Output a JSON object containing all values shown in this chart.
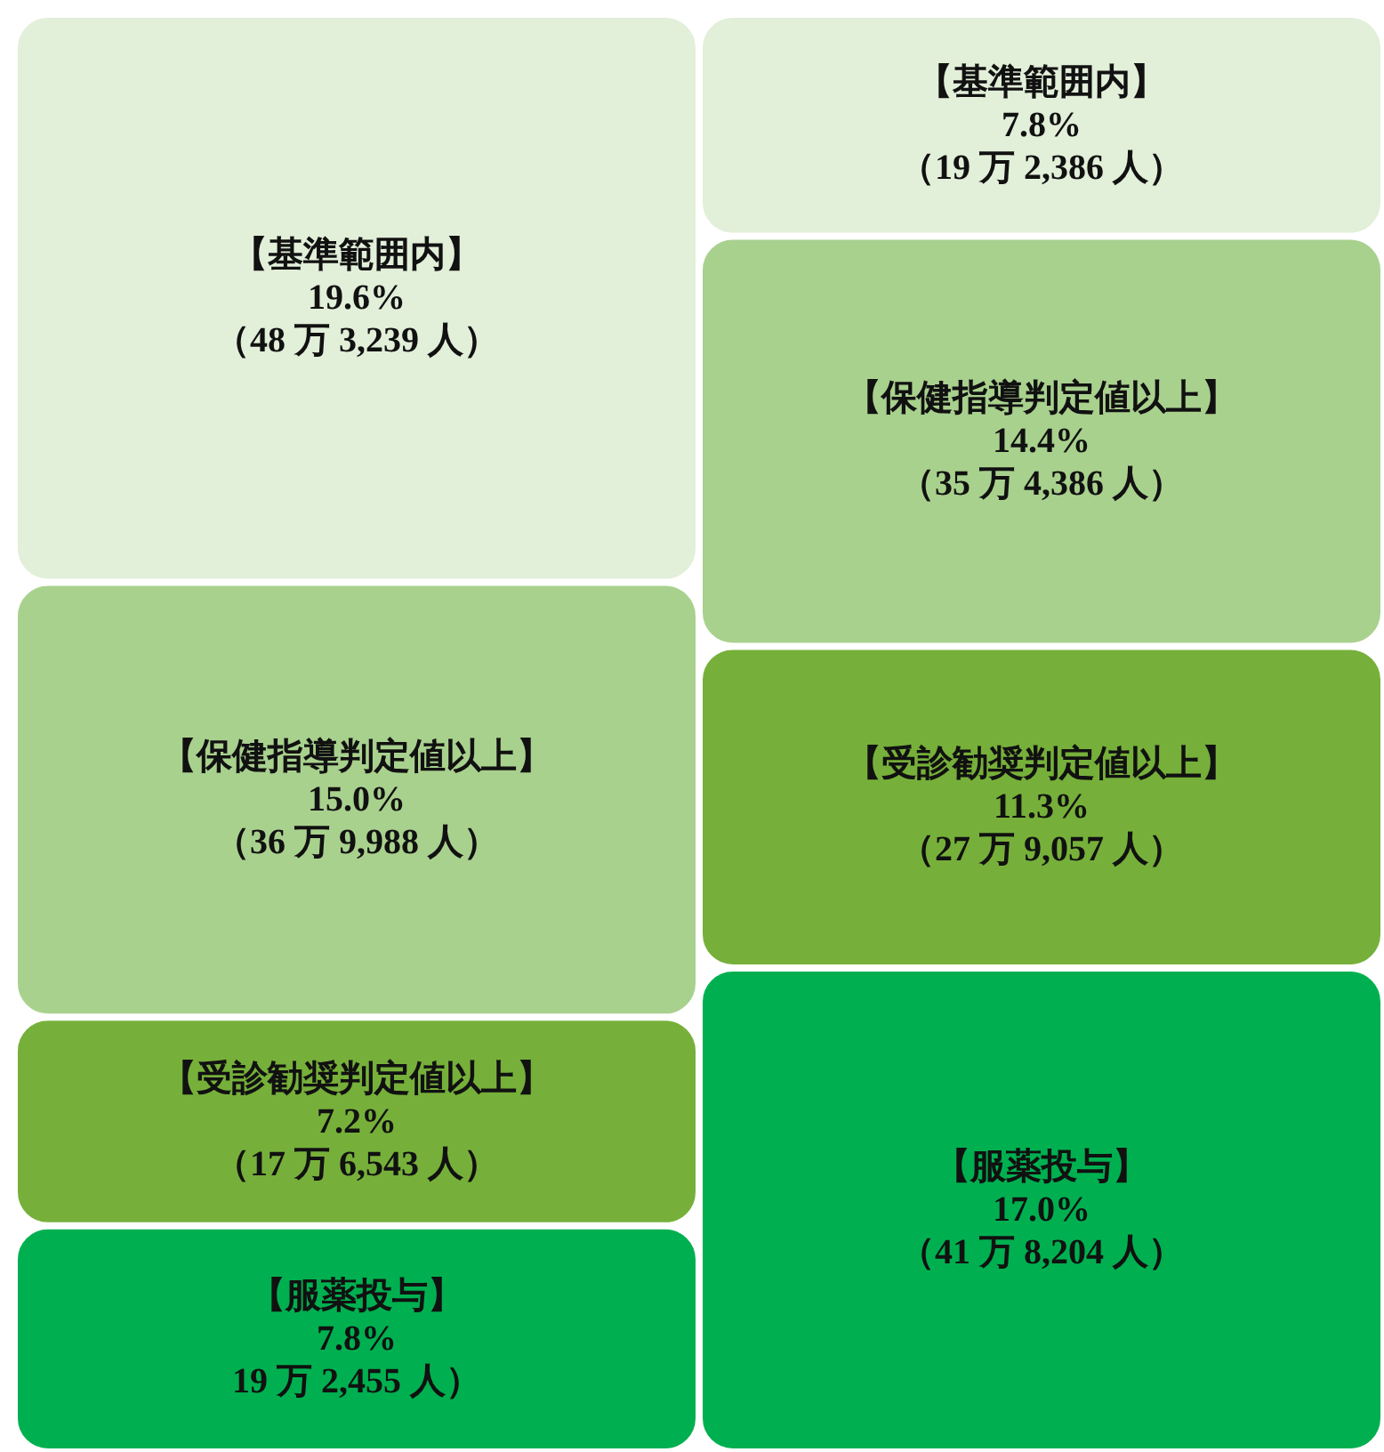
{
  "chart_data": {
    "type": "other",
    "categories": [
      "【基準範囲内】",
      "【保健指導判定値以上】",
      "【受診勧奨判定値以上】",
      "【服薬投与】",
      "【基準範囲内】",
      "【保健指導判定値以上】",
      "【受診勧奨判定値以上】",
      "【服薬投与】"
    ],
    "values": [
      19.6,
      15.0,
      7.2,
      7.8,
      7.8,
      14.4,
      11.3,
      17.0
    ],
    "value_labels": [
      "19.6%",
      "15.0%",
      "7.2%",
      "7.8%",
      "7.8%",
      "14.4%",
      "11.3%",
      "17.0%"
    ],
    "colors": [
      "#e2efd9",
      "#a9d18e",
      "#76b03a",
      "#00b050",
      "#e2efd9",
      "#a9d18e",
      "#76b03a",
      "#00b050"
    ],
    "annotations": [
      "（48 万 3,239 人）",
      "（36 万 9,988 人）",
      "（17 万 6,543 人）",
      "19 万 2,455 人）",
      "（19 万 2,386 人）",
      "（35 万 4,386 人）",
      "（27 万 9,057 人）",
      "（41 万 8,204 人）"
    ]
  }
}
